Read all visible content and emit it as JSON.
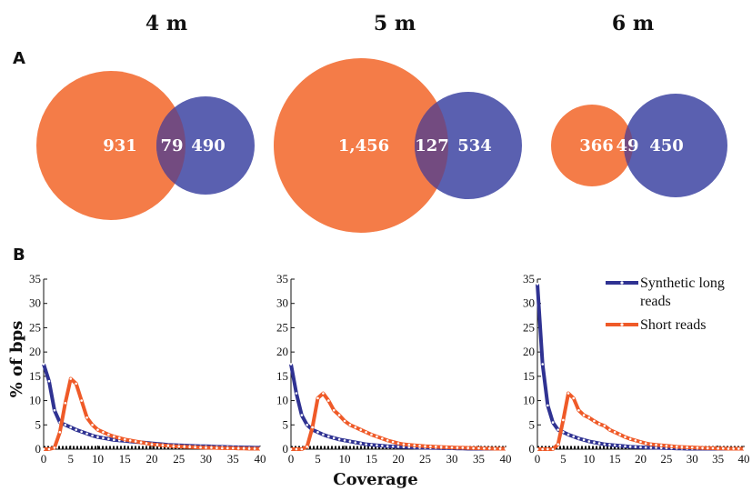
{
  "panel_labels": {
    "a": "A",
    "b": "B"
  },
  "columns": [
    "4 m",
    "5 m",
    "6 m"
  ],
  "colors": {
    "orange": "#f47c48",
    "blue": "#5a60b0",
    "overlap": "#734b80",
    "long_line": "#2f3292",
    "short_line": "#ef5a28"
  },
  "venn": [
    {
      "left": "931",
      "overlap": "79",
      "right": "490",
      "left_count": 931,
      "overlap_count": 79,
      "right_count": 490
    },
    {
      "left": "1,456",
      "overlap": "127",
      "right": "534",
      "left_count": 1456,
      "overlap_count": 127,
      "right_count": 534
    },
    {
      "left": "366",
      "overlap": "49",
      "right": "450",
      "left_count": 366,
      "overlap_count": 49,
      "right_count": 450
    }
  ],
  "legend": {
    "long": [
      "Synthetic long",
      "reads"
    ],
    "short": "Short reads"
  },
  "axes": {
    "ylabel": "% of bps",
    "xlabel": "Coverage"
  },
  "chart_data": [
    {
      "type": "line",
      "title": "4 m",
      "xlim": [
        0,
        40
      ],
      "ylim": [
        0,
        35
      ],
      "x": [
        0,
        1,
        2,
        3,
        4,
        5,
        6,
        7,
        8,
        9,
        10,
        11,
        12,
        13,
        14,
        15,
        16,
        17,
        18,
        19,
        20,
        21,
        22,
        23,
        24,
        25,
        26,
        27,
        28,
        29,
        30,
        31,
        32,
        33,
        34,
        35,
        36,
        37,
        38,
        39,
        40
      ],
      "xticks": [
        0,
        5,
        10,
        15,
        20,
        25,
        30,
        35,
        40
      ],
      "yticks": [
        0,
        5,
        10,
        15,
        20,
        25,
        30,
        35
      ],
      "series": [
        {
          "name": "Synthetic long reads",
          "values": [
            17.5,
            14,
            8,
            5.5,
            5,
            4.5,
            4,
            3.6,
            3.2,
            2.8,
            2.5,
            2.3,
            2.1,
            1.9,
            1.8,
            1.7,
            1.6,
            1.5,
            1.4,
            1.3,
            1.2,
            1.1,
            1.0,
            0.9,
            0.85,
            0.8,
            0.75,
            0.7,
            0.65,
            0.6,
            0.6,
            0.55,
            0.5,
            0.5,
            0.45,
            0.4,
            0.4,
            0.35,
            0.35,
            0.3,
            0.3
          ]
        },
        {
          "name": "Short reads",
          "values": [
            0,
            0,
            0.3,
            3.5,
            9.5,
            14.5,
            13.5,
            10,
            6.5,
            5,
            4,
            3.5,
            3,
            2.6,
            2.3,
            2,
            1.8,
            1.6,
            1.4,
            1.2,
            1.0,
            0.9,
            0.8,
            0.7,
            0.6,
            0.55,
            0.5,
            0.45,
            0.4,
            0.35,
            0.3,
            0.3,
            0.25,
            0.2,
            0.2,
            0.2,
            0.15,
            0.15,
            0.1,
            0.1,
            0.1
          ]
        }
      ]
    },
    {
      "type": "line",
      "title": "5 m",
      "xlim": [
        0,
        40
      ],
      "ylim": [
        0,
        35
      ],
      "x": [
        0,
        1,
        2,
        3,
        4,
        5,
        6,
        7,
        8,
        9,
        10,
        11,
        12,
        13,
        14,
        15,
        16,
        17,
        18,
        19,
        20,
        21,
        22,
        23,
        24,
        25,
        26,
        27,
        28,
        29,
        30,
        31,
        32,
        33,
        34,
        35,
        36,
        37,
        38,
        39,
        40
      ],
      "xticks": [
        0,
        5,
        10,
        15,
        20,
        25,
        30,
        35,
        40
      ],
      "yticks": [
        0,
        5,
        10,
        15,
        20,
        25,
        30,
        35
      ],
      "series": [
        {
          "name": "Synthetic long reads",
          "values": [
            17.5,
            11.5,
            7,
            5,
            4,
            3.5,
            3,
            2.6,
            2.3,
            2,
            1.8,
            1.6,
            1.4,
            1.2,
            1.0,
            0.9,
            0.8,
            0.7,
            0.6,
            0.55,
            0.5,
            0.45,
            0.4,
            0.35,
            0.3,
            0.3,
            0.25,
            0.25,
            0.2,
            0.2,
            0.2,
            0.15,
            0.15,
            0.1,
            0.1,
            0.1,
            0.1,
            0.1,
            0.1,
            0.1,
            0.1
          ]
        },
        {
          "name": "Short reads",
          "values": [
            0,
            0,
            0,
            0.5,
            4.5,
            10.5,
            11.5,
            10,
            8,
            7,
            5.8,
            5,
            4.5,
            4,
            3.5,
            3,
            2.6,
            2.2,
            1.8,
            1.5,
            1.2,
            1.0,
            0.9,
            0.8,
            0.7,
            0.6,
            0.55,
            0.5,
            0.45,
            0.4,
            0.35,
            0.3,
            0.3,
            0.25,
            0.2,
            0.2,
            0.15,
            0.15,
            0.1,
            0.1,
            0.1
          ]
        }
      ]
    },
    {
      "type": "line",
      "title": "6 m",
      "xlim": [
        0,
        40
      ],
      "ylim": [
        0,
        35
      ],
      "x": [
        0,
        1,
        2,
        3,
        4,
        5,
        6,
        7,
        8,
        9,
        10,
        11,
        12,
        13,
        14,
        15,
        16,
        17,
        18,
        19,
        20,
        21,
        22,
        23,
        24,
        25,
        26,
        27,
        28,
        29,
        30,
        31,
        32,
        33,
        34,
        35,
        36,
        37,
        38,
        39,
        40
      ],
      "xticks": [
        0,
        5,
        10,
        15,
        20,
        25,
        30,
        35,
        40
      ],
      "yticks": [
        0,
        5,
        10,
        15,
        20,
        25,
        30,
        35
      ],
      "series": [
        {
          "name": "Synthetic long reads",
          "values": [
            34,
            17.5,
            9,
            5.5,
            4,
            3.5,
            3,
            2.6,
            2.2,
            1.9,
            1.6,
            1.4,
            1.2,
            1.0,
            0.9,
            0.8,
            0.7,
            0.6,
            0.5,
            0.45,
            0.4,
            0.35,
            0.3,
            0.3,
            0.25,
            0.2,
            0.2,
            0.15,
            0.15,
            0.1,
            0.1,
            0.1,
            0.1,
            0.1,
            0.1,
            0.1,
            0.1,
            0.1,
            0.1,
            0.1,
            0.1
          ]
        },
        {
          "name": "Short reads",
          "values": [
            0,
            0,
            0,
            0,
            1,
            6,
            11.5,
            10.5,
            8,
            7,
            6.5,
            5.8,
            5.2,
            4.8,
            4,
            3.5,
            3,
            2.5,
            2.1,
            1.8,
            1.5,
            1.2,
            1.0,
            0.9,
            0.8,
            0.7,
            0.6,
            0.5,
            0.45,
            0.4,
            0.35,
            0.3,
            0.25,
            0.2,
            0.2,
            0.15,
            0.15,
            0.1,
            0.1,
            0.1,
            0.1
          ]
        }
      ]
    }
  ]
}
